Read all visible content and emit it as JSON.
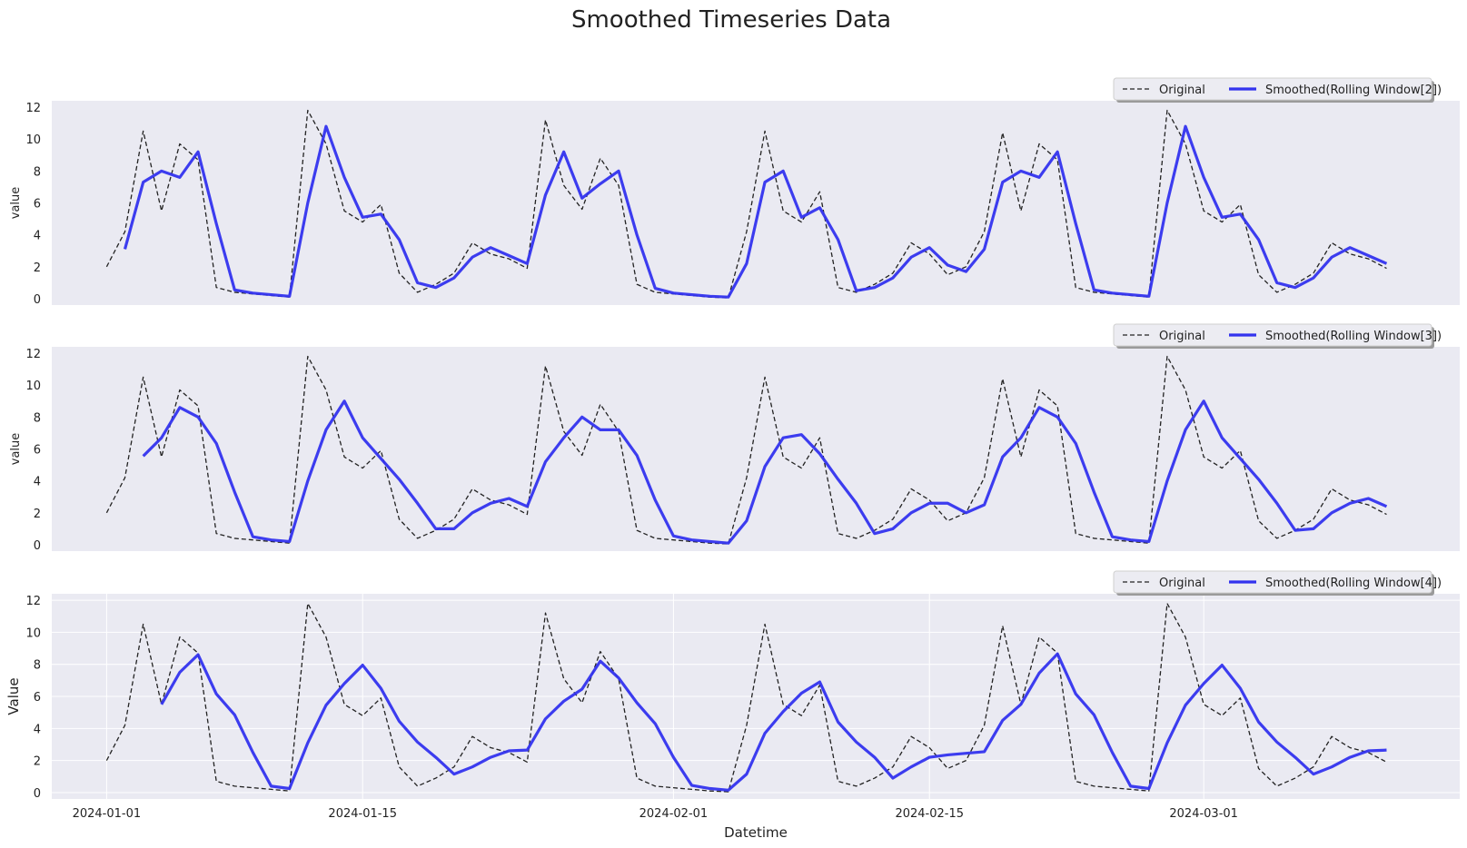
{
  "figure": {
    "title": "Smoothed Timeseries Data",
    "xlabel": "Datetime"
  },
  "colors": {
    "axes_bg": "#eaeaf2",
    "grid": "#ffffff",
    "original": "#222222",
    "smoothed": "#3333ee"
  },
  "chart_data": [
    {
      "type": "line",
      "ylabel": "value",
      "ylim": [
        -0.4,
        12.4
      ],
      "yticks": [
        0,
        2,
        4,
        6,
        8,
        10,
        12
      ],
      "grid": false,
      "legend": "top-right",
      "x_start": "2024-01-01",
      "x_step": "1 day",
      "xlim": [
        "2023-12-29",
        "2024-03-15"
      ],
      "series": [
        {
          "name": "Original",
          "style": "dashed",
          "values": [
            2.0,
            4.2,
            10.5,
            5.5,
            9.7,
            8.7,
            0.7,
            0.4,
            0.3,
            0.2,
            0.1,
            11.8,
            9.7,
            5.5,
            4.8,
            5.9,
            1.6,
            0.4,
            0.9,
            1.6,
            3.5,
            2.8,
            2.5,
            1.9,
            11.2,
            7.1,
            5.6,
            8.8,
            7.1,
            0.9,
            0.4,
            0.3,
            0.2,
            0.1,
            0.05,
            4.2,
            10.5,
            5.5,
            4.8,
            6.7,
            0.7,
            0.4,
            0.9,
            1.6,
            3.5,
            2.8,
            1.5,
            2.0,
            4.2,
            10.4,
            5.5,
            9.7,
            8.7,
            0.7,
            0.4,
            0.3,
            0.2,
            0.1,
            11.8,
            9.7,
            5.5,
            4.8,
            5.9,
            1.5,
            0.4,
            0.9,
            1.6,
            3.5,
            2.8,
            2.5,
            1.9
          ]
        },
        {
          "name": "Smoothed(Rolling Window[2])",
          "style": "solid",
          "values": [
            null,
            3.1,
            7.3,
            8.0,
            7.6,
            9.2,
            4.7,
            0.55,
            0.35,
            0.25,
            0.15,
            6.0,
            10.8,
            7.6,
            5.1,
            5.3,
            3.7,
            1.0,
            0.7,
            1.3,
            2.6,
            3.2,
            2.7,
            2.2,
            6.5,
            9.2,
            6.3,
            7.2,
            8.0,
            4.0,
            0.65,
            0.35,
            0.25,
            0.15,
            0.1,
            2.2,
            7.3,
            8.0,
            5.1,
            5.7,
            3.7,
            0.5,
            0.7,
            1.3,
            2.6,
            3.2,
            2.1,
            1.7,
            3.1,
            7.3,
            8.0,
            7.6,
            9.2,
            4.7,
            0.55,
            0.35,
            0.25,
            0.15,
            6.0,
            10.8,
            7.6,
            5.1,
            5.3,
            3.7,
            1.0,
            0.7,
            1.3,
            2.6,
            3.2,
            2.7,
            2.2
          ]
        }
      ]
    },
    {
      "type": "line",
      "ylabel": "value",
      "ylim": [
        -0.4,
        12.4
      ],
      "yticks": [
        0,
        2,
        4,
        6,
        8,
        10,
        12
      ],
      "grid": false,
      "legend": "top-right",
      "x_start": "2024-01-01",
      "x_step": "1 day",
      "xlim": [
        "2023-12-29",
        "2024-03-15"
      ],
      "series": [
        {
          "name": "Original",
          "style": "dashed",
          "values": [
            2.0,
            4.2,
            10.5,
            5.5,
            9.7,
            8.7,
            0.7,
            0.4,
            0.3,
            0.2,
            0.1,
            11.8,
            9.7,
            5.5,
            4.8,
            5.9,
            1.6,
            0.4,
            0.9,
            1.6,
            3.5,
            2.8,
            2.5,
            1.9,
            11.2,
            7.1,
            5.6,
            8.8,
            7.1,
            0.9,
            0.4,
            0.3,
            0.2,
            0.1,
            0.05,
            4.2,
            10.5,
            5.5,
            4.8,
            6.7,
            0.7,
            0.4,
            0.9,
            1.6,
            3.5,
            2.8,
            1.5,
            2.0,
            4.2,
            10.4,
            5.5,
            9.7,
            8.7,
            0.7,
            0.4,
            0.3,
            0.2,
            0.1,
            11.8,
            9.7,
            5.5,
            4.8,
            5.9,
            1.5,
            0.4,
            0.9,
            1.6,
            3.5,
            2.8,
            2.5,
            1.9
          ]
        },
        {
          "name": "Smoothed(Rolling Window[3])",
          "style": "solid",
          "values": [
            null,
            null,
            5.55,
            6.7,
            8.6,
            8.0,
            6.35,
            3.3,
            0.5,
            0.3,
            0.2,
            4.0,
            7.2,
            9.0,
            6.7,
            5.4,
            4.1,
            2.6,
            1.0,
            1.0,
            2.0,
            2.6,
            2.9,
            2.4,
            5.2,
            6.7,
            8.0,
            7.2,
            7.2,
            5.6,
            2.8,
            0.55,
            0.3,
            0.2,
            0.1,
            1.5,
            4.9,
            6.7,
            6.9,
            5.7,
            4.1,
            2.6,
            0.7,
            1.0,
            2.0,
            2.6,
            2.6,
            2.0,
            2.5,
            5.5,
            6.7,
            8.6,
            8.0,
            6.35,
            3.3,
            0.5,
            0.3,
            0.2,
            4.0,
            7.2,
            9.0,
            6.7,
            5.4,
            4.1,
            2.6,
            0.9,
            1.0,
            2.0,
            2.6,
            2.9,
            2.4
          ]
        }
      ]
    },
    {
      "type": "line",
      "ylabel": "Value",
      "ylim": [
        -0.4,
        12.4
      ],
      "yticks": [
        0,
        2,
        4,
        6,
        8,
        10,
        12
      ],
      "grid": true,
      "legend": "top-right",
      "x_start": "2024-01-01",
      "x_step": "1 day",
      "xlim": [
        "2023-12-29",
        "2024-03-15"
      ],
      "xticks": [
        "2024-01-01",
        "2024-01-15",
        "2024-02-01",
        "2024-02-15",
        "2024-03-01"
      ],
      "series": [
        {
          "name": "Original",
          "style": "dashed",
          "values": [
            2.0,
            4.2,
            10.5,
            5.5,
            9.7,
            8.7,
            0.7,
            0.4,
            0.3,
            0.2,
            0.1,
            11.8,
            9.7,
            5.5,
            4.8,
            5.9,
            1.6,
            0.4,
            0.9,
            1.6,
            3.5,
            2.8,
            2.5,
            1.9,
            11.2,
            7.1,
            5.6,
            8.8,
            7.1,
            0.9,
            0.4,
            0.3,
            0.2,
            0.1,
            0.05,
            4.2,
            10.5,
            5.5,
            4.8,
            6.7,
            0.7,
            0.4,
            0.9,
            1.6,
            3.5,
            2.8,
            1.5,
            2.0,
            4.2,
            10.4,
            5.5,
            9.7,
            8.7,
            0.7,
            0.4,
            0.3,
            0.2,
            0.1,
            11.8,
            9.7,
            5.5,
            4.8,
            5.9,
            1.5,
            0.4,
            0.9,
            1.6,
            3.5,
            2.8,
            2.5,
            1.9
          ]
        },
        {
          "name": "Smoothed(Rolling Window[4])",
          "style": "solid",
          "values": [
            null,
            null,
            null,
            5.5,
            7.5,
            8.6,
            6.15,
            4.85,
            2.5,
            0.4,
            0.25,
            3.1,
            5.45,
            6.8,
            7.95,
            6.5,
            4.45,
            3.15,
            2.2,
            1.15,
            1.6,
            2.2,
            2.6,
            2.65,
            4.6,
            5.7,
            6.45,
            8.2,
            7.15,
            5.6,
            4.3,
            2.2,
            0.45,
            0.25,
            0.15,
            1.15,
            3.7,
            5.05,
            6.2,
            6.9,
            4.4,
            3.15,
            2.2,
            0.9,
            1.6,
            2.2,
            2.35,
            2.45,
            2.55,
            4.5,
            5.5,
            7.45,
            8.65,
            6.15,
            4.85,
            2.5,
            0.4,
            0.25,
            3.1,
            5.45,
            6.8,
            7.95,
            6.5,
            4.4,
            3.15,
            2.2,
            1.15,
            1.6,
            2.2,
            2.6,
            2.65
          ]
        }
      ]
    }
  ]
}
